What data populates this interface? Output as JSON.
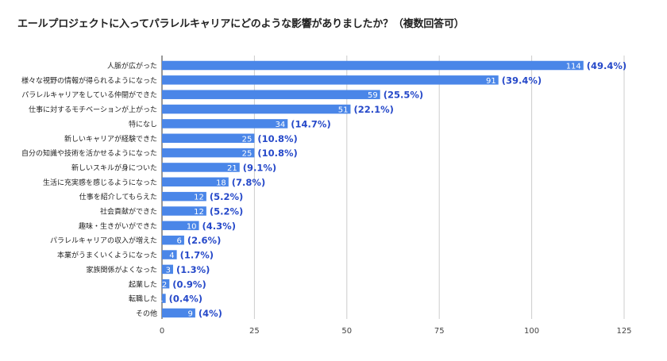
{
  "chart_data": {
    "type": "bar",
    "orientation": "horizontal",
    "title": "エールプロジェクトに入ってパラレルキャリアにどのような影響がありましたか？（複数回答可）",
    "categories": [
      "人脈が広がった",
      "様々な視野の情報が得られるようになった",
      "パラレルキャリアをしている仲間ができた",
      "仕事に対するモチベーションが上がった",
      "特になし",
      "新しいキャリアが経験できた",
      "自分の知識や技術を活かせるようになった",
      "新しいスキルが身についた",
      "生活に充実感を感じるようになった",
      "仕事を紹介してもらえた",
      "社会貢献ができた",
      "趣味・生きがいができた",
      "パラレルキャリアの収入が増えた",
      "本業がうまくいくようになった",
      "家族関係がよくなった",
      "起業した",
      "転職した",
      "その他"
    ],
    "values": [
      114,
      91,
      59,
      51,
      34,
      25,
      25,
      21,
      18,
      12,
      12,
      10,
      6,
      4,
      3,
      2,
      1,
      9
    ],
    "percent_labels": [
      "(49.4%)",
      "(39.4%)",
      "(25.5%)",
      "(22.1%)",
      "(14.7%)",
      "(10.8%)",
      "(10.8%)",
      "(9.1%)",
      "(7.8%)",
      "(5.2%)",
      "(5.2%)",
      "(4.3%)",
      "(2.6%)",
      "(1.7%)",
      "(1.3%)",
      "(0.9%)",
      "(0.4%)",
      "(4%)"
    ],
    "xlim": [
      0,
      125
    ],
    "xticks": [
      0,
      25,
      50,
      75,
      100,
      125
    ],
    "xlabel": "",
    "ylabel": "",
    "grid": true,
    "legend": "none",
    "colors": {
      "bar": "#4a86e8",
      "percent_text": "#2649c9",
      "grid": "#cccccc"
    }
  }
}
